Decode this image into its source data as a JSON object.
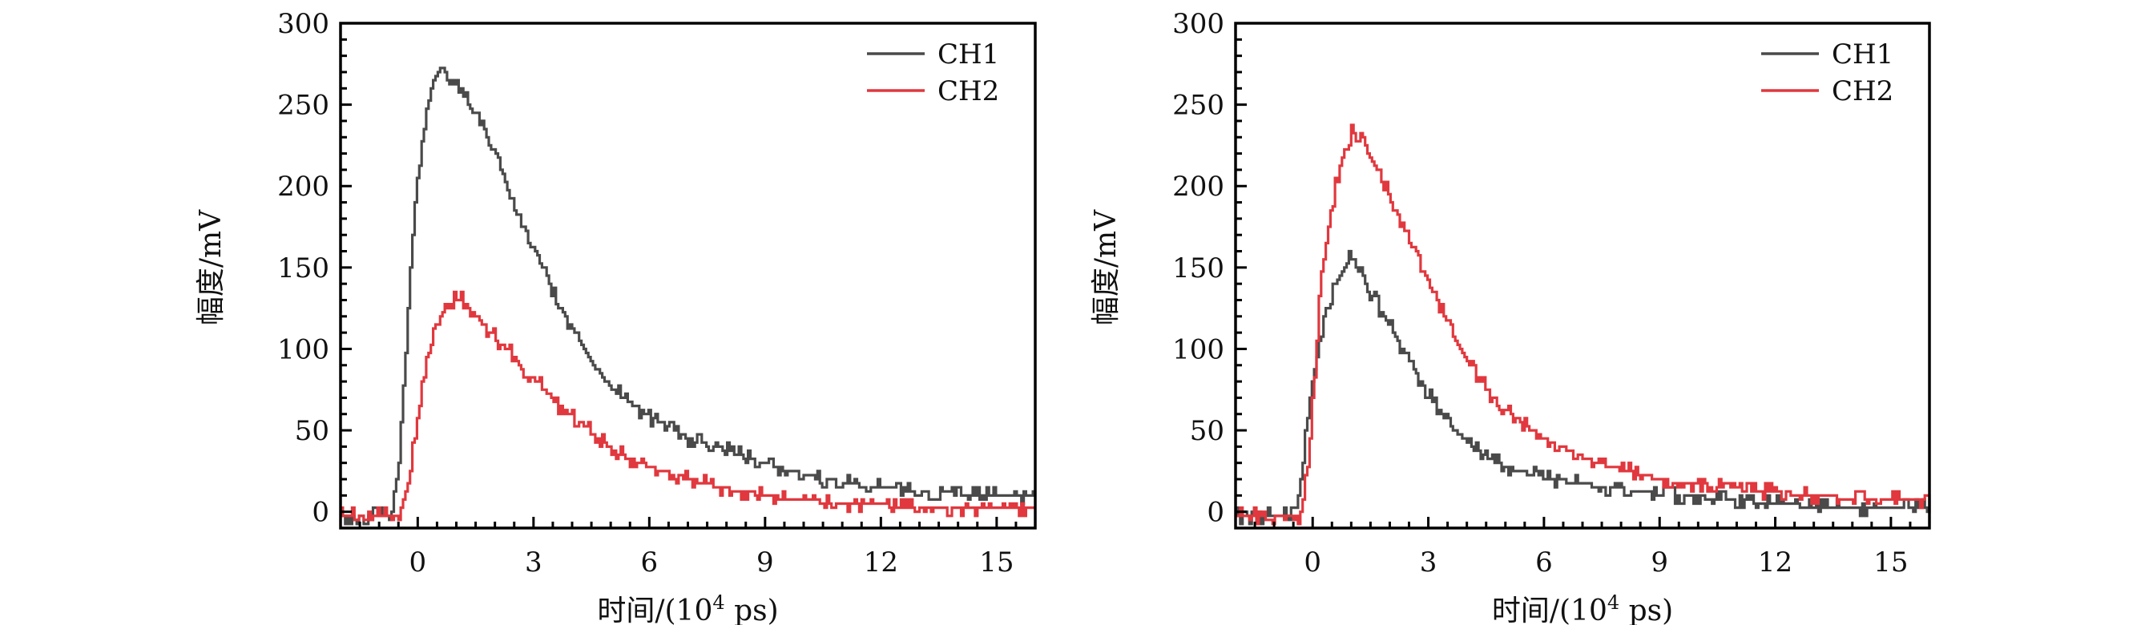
{
  "chart_data": [
    {
      "type": "line",
      "title": "",
      "xlabel": "时间/(10",
      "xlabel_sup": "4",
      "xlabel_suffix": " ps)",
      "ylabel": "幅度/mV",
      "xlim": [
        -2,
        16
      ],
      "ylim": [
        -10,
        300
      ],
      "xticks": [
        0,
        3,
        6,
        9,
        12,
        15
      ],
      "yticks": [
        0,
        50,
        100,
        150,
        200,
        250,
        300
      ],
      "x_minor_step": 0.5,
      "y_minor_step": 10,
      "grid": false,
      "legend": "top-right",
      "series": [
        {
          "name": "CH1",
          "color": "#4a4a4a",
          "points": [
            [
              -2,
              -2
            ],
            [
              -1.6,
              -4
            ],
            [
              -1.2,
              -2
            ],
            [
              -0.8,
              -2
            ],
            [
              -0.66,
              0
            ],
            [
              -0.5,
              30
            ],
            [
              -0.4,
              70
            ],
            [
              -0.3,
              110
            ],
            [
              -0.2,
              150
            ],
            [
              -0.1,
              185
            ],
            [
              0.0,
              210
            ],
            [
              0.1,
              228
            ],
            [
              0.2,
              245
            ],
            [
              0.3,
              255
            ],
            [
              0.4,
              265
            ],
            [
              0.5,
              269
            ],
            [
              0.64,
              273
            ],
            [
              0.8,
              267
            ],
            [
              1.0,
              260
            ],
            [
              1.2,
              255
            ],
            [
              1.5,
              243
            ],
            [
              1.8,
              228
            ],
            [
              2.1,
              212
            ],
            [
              2.4,
              196
            ],
            [
              2.7,
              178
            ],
            [
              3.0,
              162
            ],
            [
              3.3,
              146
            ],
            [
              3.6,
              130
            ],
            [
              3.9,
              116
            ],
            [
              4.2,
              103
            ],
            [
              4.5,
              92
            ],
            [
              4.8,
              82
            ],
            [
              5.1,
              74
            ],
            [
              5.5,
              67
            ],
            [
              6.0,
              58
            ],
            [
              6.5,
              52
            ],
            [
              7.0,
              45
            ],
            [
              7.5,
              41
            ],
            [
              8.0,
              38
            ],
            [
              8.5,
              33
            ],
            [
              9.0,
              29
            ],
            [
              9.5,
              26
            ],
            [
              10.0,
              23
            ],
            [
              10.5,
              20
            ],
            [
              11.0,
              18
            ],
            [
              11.5,
              16
            ],
            [
              12.0,
              15
            ],
            [
              12.5,
              14
            ],
            [
              13.0,
              13
            ],
            [
              13.5,
              12
            ],
            [
              14.0,
              11
            ],
            [
              14.5,
              11
            ],
            [
              15.0,
              10
            ],
            [
              15.5,
              9
            ],
            [
              16,
              9
            ]
          ]
        },
        {
          "name": "CH2",
          "color": "#e0383e",
          "points": [
            [
              -2,
              -2
            ],
            [
              -1.6,
              -2
            ],
            [
              -1.3,
              -5
            ],
            [
              -1.0,
              -2
            ],
            [
              -0.5,
              -2
            ],
            [
              -0.4,
              5
            ],
            [
              -0.3,
              15
            ],
            [
              -0.2,
              30
            ],
            [
              -0.1,
              45
            ],
            [
              0.0,
              60
            ],
            [
              0.1,
              75
            ],
            [
              0.2,
              88
            ],
            [
              0.3,
              100
            ],
            [
              0.4,
              108
            ],
            [
              0.5,
              118
            ],
            [
              0.7,
              124
            ],
            [
              0.9,
              130
            ],
            [
              1.1,
              131
            ],
            [
              1.3,
              125
            ],
            [
              1.5,
              120
            ],
            [
              1.8,
              112
            ],
            [
              2.1,
              104
            ],
            [
              2.4,
              98
            ],
            [
              2.7,
              88
            ],
            [
              3.0,
              82
            ],
            [
              3.3,
              74
            ],
            [
              3.6,
              66
            ],
            [
              3.9,
              60
            ],
            [
              4.2,
              55
            ],
            [
              4.5,
              48
            ],
            [
              4.8,
              42
            ],
            [
              5.1,
              37
            ],
            [
              5.5,
              32
            ],
            [
              6.0,
              28
            ],
            [
              6.5,
              24
            ],
            [
              7.0,
              20
            ],
            [
              7.5,
              17
            ],
            [
              8.0,
              14
            ],
            [
              8.5,
              12
            ],
            [
              9.0,
              10
            ],
            [
              9.5,
              8
            ],
            [
              10.0,
              7
            ],
            [
              10.5,
              6
            ],
            [
              11.0,
              5
            ],
            [
              11.5,
              4
            ],
            [
              12.0,
              4
            ],
            [
              12.5,
              3
            ],
            [
              13.0,
              3
            ],
            [
              13.5,
              3
            ],
            [
              14.0,
              2
            ],
            [
              14.5,
              2
            ],
            [
              15.0,
              2
            ],
            [
              15.5,
              2
            ],
            [
              16,
              2
            ]
          ]
        }
      ]
    },
    {
      "type": "line",
      "title": "",
      "xlabel": "时间/(10",
      "xlabel_sup": "4",
      "xlabel_suffix": " ps)",
      "ylabel": "幅度/mV",
      "xlim": [
        -2,
        16
      ],
      "ylim": [
        -10,
        300
      ],
      "xticks": [
        0,
        3,
        6,
        9,
        12,
        15
      ],
      "yticks": [
        0,
        50,
        100,
        150,
        200,
        250,
        300
      ],
      "x_minor_step": 0.5,
      "y_minor_step": 10,
      "grid": false,
      "legend": "top-right",
      "series": [
        {
          "name": "CH1",
          "color": "#4a4a4a",
          "points": [
            [
              -2,
              -2
            ],
            [
              -1.6,
              -4
            ],
            [
              -1.2,
              -2
            ],
            [
              -0.6,
              -2
            ],
            [
              -0.45,
              0
            ],
            [
              -0.35,
              15
            ],
            [
              -0.25,
              35
            ],
            [
              -0.15,
              55
            ],
            [
              -0.05,
              75
            ],
            [
              0.05,
              90
            ],
            [
              0.15,
              100
            ],
            [
              0.3,
              118
            ],
            [
              0.45,
              130
            ],
            [
              0.6,
              142
            ],
            [
              0.8,
              150
            ],
            [
              0.97,
              157
            ],
            [
              1.1,
              150
            ],
            [
              1.3,
              144
            ],
            [
              1.5,
              134
            ],
            [
              1.8,
              122
            ],
            [
              2.1,
              110
            ],
            [
              2.4,
              96
            ],
            [
              2.7,
              84
            ],
            [
              3.0,
              72
            ],
            [
              3.3,
              62
            ],
            [
              3.6,
              52
            ],
            [
              3.9,
              45
            ],
            [
              4.2,
              38
            ],
            [
              4.5,
              34
            ],
            [
              4.8,
              30
            ],
            [
              5.2,
              26
            ],
            [
              5.6,
              23
            ],
            [
              6.0,
              21
            ],
            [
              6.5,
              19
            ],
            [
              7.0,
              17
            ],
            [
              7.5,
              15
            ],
            [
              8.0,
              14
            ],
            [
              8.5,
              12
            ],
            [
              9.0,
              11
            ],
            [
              9.5,
              10
            ],
            [
              10.0,
              9
            ],
            [
              10.5,
              8
            ],
            [
              11.0,
              7
            ],
            [
              11.5,
              6
            ],
            [
              12.0,
              5
            ],
            [
              12.5,
              4
            ],
            [
              13.0,
              3
            ],
            [
              13.5,
              3
            ],
            [
              14.0,
              2
            ],
            [
              14.5,
              2
            ],
            [
              15.0,
              2
            ],
            [
              15.5,
              3
            ],
            [
              16,
              3
            ]
          ]
        },
        {
          "name": "CH2",
          "color": "#e0383e",
          "points": [
            [
              -2,
              -2
            ],
            [
              -1.5,
              -2
            ],
            [
              -1.2,
              -5
            ],
            [
              -0.9,
              -2
            ],
            [
              -0.45,
              -2
            ],
            [
              -0.35,
              -5
            ],
            [
              -0.25,
              10
            ],
            [
              -0.15,
              25
            ],
            [
              -0.05,
              55
            ],
            [
              0.05,
              90
            ],
            [
              0.15,
              130
            ],
            [
              0.3,
              160
            ],
            [
              0.45,
              183
            ],
            [
              0.6,
              203
            ],
            [
              0.75,
              218
            ],
            [
              0.9,
              228
            ],
            [
              1.0,
              233
            ],
            [
              1.2,
              231
            ],
            [
              1.4,
              222
            ],
            [
              1.7,
              208
            ],
            [
              2.0,
              192
            ],
            [
              2.3,
              178
            ],
            [
              2.6,
              160
            ],
            [
              2.9,
              146
            ],
            [
              3.2,
              130
            ],
            [
              3.5,
              115
            ],
            [
              3.8,
              100
            ],
            [
              4.1,
              88
            ],
            [
              4.4,
              78
            ],
            [
              4.7,
              70
            ],
            [
              5.0,
              62
            ],
            [
              5.4,
              55
            ],
            [
              5.8,
              48
            ],
            [
              6.2,
              42
            ],
            [
              6.6,
              38
            ],
            [
              7.0,
              33
            ],
            [
              7.5,
              29
            ],
            [
              8.0,
              26
            ],
            [
              8.5,
              23
            ],
            [
              9.0,
              20
            ],
            [
              9.5,
              18
            ],
            [
              10.0,
              17
            ],
            [
              10.5,
              15
            ],
            [
              11.0,
              14
            ],
            [
              11.5,
              13
            ],
            [
              12.0,
              12
            ],
            [
              12.5,
              11
            ],
            [
              13.0,
              10
            ],
            [
              13.5,
              9
            ],
            [
              14.0,
              8
            ],
            [
              14.5,
              8
            ],
            [
              15.0,
              8
            ],
            [
              15.5,
              7
            ],
            [
              16,
              7
            ]
          ]
        }
      ]
    }
  ]
}
